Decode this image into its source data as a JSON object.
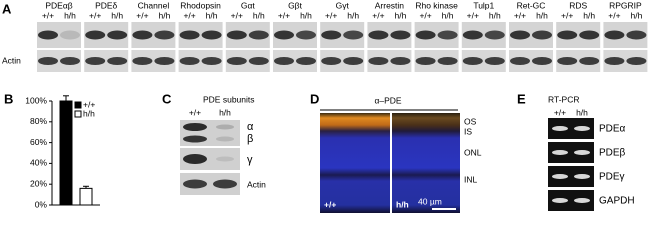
{
  "panel_a": {
    "label": "A",
    "proteins": [
      "PDEαβ",
      "PDEδ",
      "Channel",
      "Rhodopsin",
      "Gαt",
      "Gβt",
      "Gγt",
      "Arrestin",
      "Rho kinase",
      "Tulp1",
      "Ret-GC",
      "RDS",
      "RPGRIP"
    ],
    "genotypes": [
      "+/+",
      "h/h"
    ],
    "loading_control": "Actin"
  },
  "chart_data": {
    "type": "bar",
    "label": "B",
    "series": [
      {
        "name": "+/+",
        "color": "#000000",
        "values": [
          100
        ],
        "errors": [
          5
        ]
      },
      {
        "name": "h/h",
        "color": "#ffffff",
        "values": [
          16
        ],
        "errors": [
          2
        ]
      }
    ],
    "ylim": [
      0,
      100
    ],
    "yticks": [
      {
        "value": 0,
        "label": "0%"
      },
      {
        "value": 20,
        "label": "20%"
      },
      {
        "value": 40,
        "label": "40%"
      },
      {
        "value": 60,
        "label": "60%"
      },
      {
        "value": 80,
        "label": "80%"
      },
      {
        "value": 100,
        "label": "100%"
      }
    ]
  },
  "panel_c": {
    "label": "C",
    "title": "PDE subunits",
    "genotypes": [
      "+/+",
      "h/h"
    ],
    "rows": [
      "α",
      "β",
      "γ",
      "Actin"
    ]
  },
  "panel_d": {
    "label": "D",
    "title": "α–PDE",
    "layers": [
      "OS",
      "IS",
      "ONL",
      "INL"
    ],
    "genotypes": [
      "+/+",
      "h/h"
    ],
    "scale_bar": "40 µm"
  },
  "panel_e": {
    "label": "E",
    "title": "RT-PCR",
    "genotypes": [
      "+/+",
      "h/h"
    ],
    "rows": [
      "PDEα",
      "PDEβ",
      "PDEγ",
      "GAPDH"
    ]
  }
}
